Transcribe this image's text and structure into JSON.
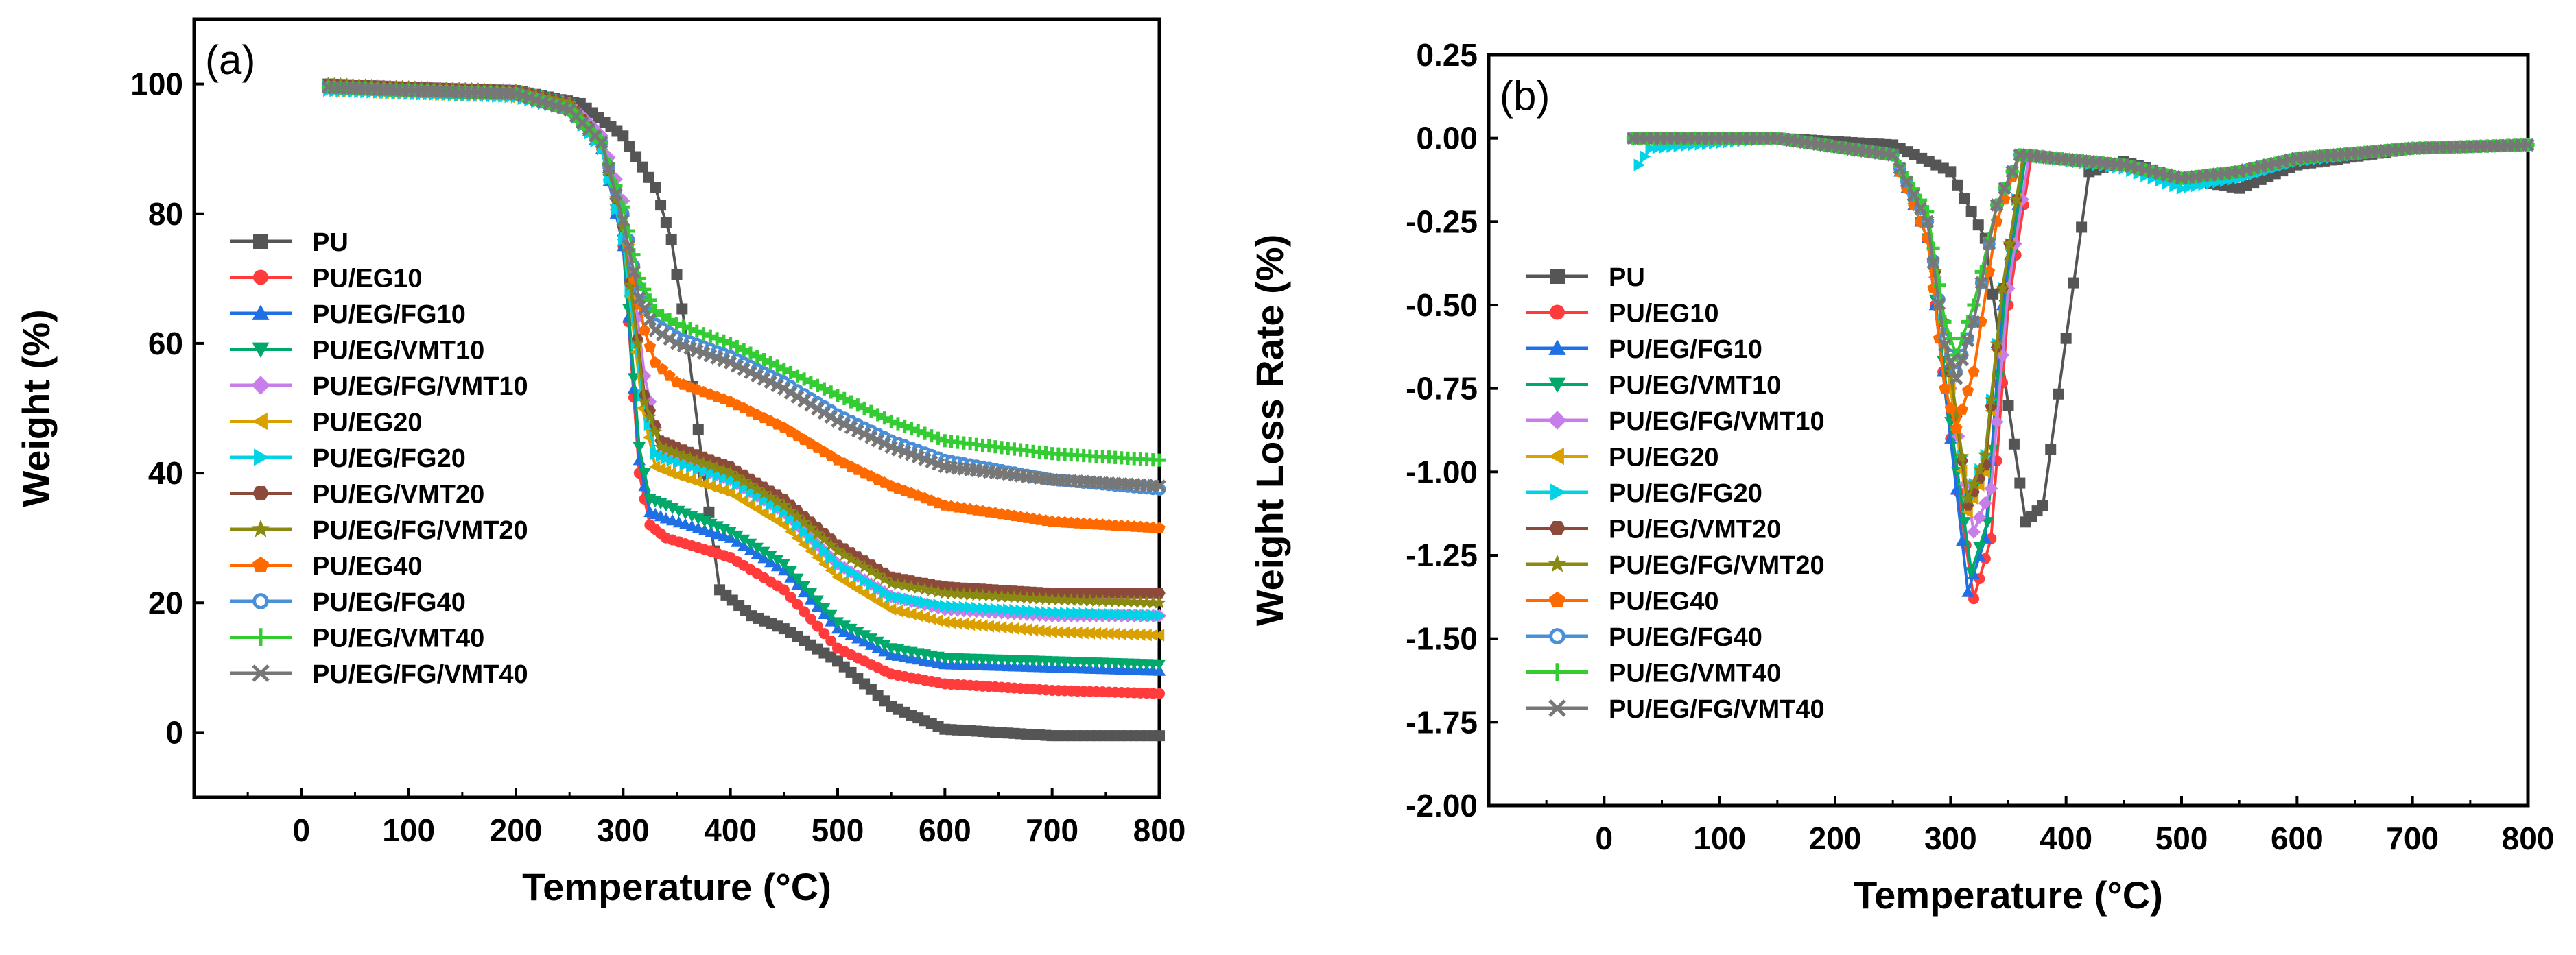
{
  "chart_data": [
    {
      "type": "line",
      "panel_label": "(a)",
      "xlabel": "Temperature (°C)",
      "ylabel": "Weight (%)",
      "xlim": [
        -100,
        800
      ],
      "ylim": [
        -10,
        110
      ],
      "xticks": [
        0,
        100,
        200,
        300,
        400,
        500,
        600,
        700,
        800
      ],
      "yticks": [
        0,
        20,
        40,
        60,
        80,
        100
      ],
      "legend_location": "left-middle",
      "series": [
        {
          "name": "PU",
          "color": "#555555",
          "marker": "square",
          "x": [
            25,
            100,
            200,
            260,
            300,
            330,
            345,
            360,
            375,
            390,
            420,
            450,
            500,
            550,
            600,
            700,
            800
          ],
          "y": [
            100,
            99.5,
            99,
            97,
            92,
            84,
            76,
            60,
            40,
            22,
            18,
            16,
            11,
            4,
            0.5,
            -0.5,
            -0.5
          ]
        },
        {
          "name": "PU/EG10",
          "color": "#ff3b3b",
          "marker": "circle",
          "x": [
            25,
            100,
            200,
            250,
            280,
            300,
            315,
            325,
            340,
            400,
            450,
            500,
            550,
            600,
            700,
            800
          ],
          "y": [
            100,
            99.5,
            99,
            97,
            90,
            75,
            40,
            32,
            30,
            27,
            22,
            13,
            9,
            7.5,
            6.5,
            6
          ]
        },
        {
          "name": "PU/EG/FG10",
          "color": "#1f6fe5",
          "marker": "triangle-up",
          "x": [
            25,
            100,
            200,
            250,
            280,
            300,
            315,
            325,
            340,
            400,
            450,
            500,
            550,
            600,
            700,
            800
          ],
          "y": [
            100,
            99.5,
            99,
            97,
            90,
            75,
            42,
            34,
            33,
            30,
            25,
            16,
            12,
            10.5,
            10,
            9.5
          ]
        },
        {
          "name": "PU/EG/VMT10",
          "color": "#00a86b",
          "marker": "triangle-down",
          "x": [
            25,
            100,
            200,
            250,
            280,
            300,
            315,
            325,
            340,
            400,
            450,
            500,
            550,
            600,
            700,
            800
          ],
          "y": [
            100,
            99.5,
            99,
            97,
            90,
            76,
            44,
            36,
            35,
            31,
            26,
            17,
            13,
            11.5,
            11,
            10.5
          ]
        },
        {
          "name": "PU/EG/FG/VMT10",
          "color": "#c77ee8",
          "marker": "diamond",
          "x": [
            25,
            100,
            200,
            250,
            280,
            300,
            320,
            335,
            350,
            400,
            450,
            500,
            550,
            600,
            700,
            800
          ],
          "y": [
            100,
            99.5,
            99,
            97,
            92,
            82,
            55,
            43,
            42,
            39,
            34,
            26,
            21,
            19,
            18,
            18
          ]
        },
        {
          "name": "PU/EG20",
          "color": "#d9a000",
          "marker": "triangle-left",
          "x": [
            25,
            100,
            200,
            250,
            280,
            300,
            318,
            330,
            345,
            400,
            450,
            500,
            550,
            600,
            700,
            800
          ],
          "y": [
            99,
            98.5,
            98,
            96,
            90,
            76,
            50,
            41,
            40,
            37,
            32,
            24,
            19,
            17,
            15.5,
            15
          ]
        },
        {
          "name": "PU/EG/FG20",
          "color": "#00d3e6",
          "marker": "triangle-right",
          "x": [
            25,
            100,
            200,
            250,
            280,
            300,
            318,
            330,
            345,
            400,
            450,
            500,
            550,
            600,
            700,
            800
          ],
          "y": [
            99,
            98.5,
            98,
            96,
            90,
            76,
            52,
            43,
            42,
            39,
            34,
            26,
            21,
            19.5,
            18.5,
            18
          ]
        },
        {
          "name": "PU/EG/VMT20",
          "color": "#8b4a3a",
          "marker": "hexagon",
          "x": [
            25,
            100,
            200,
            250,
            280,
            300,
            320,
            335,
            350,
            400,
            450,
            500,
            550,
            600,
            700,
            800
          ],
          "y": [
            100,
            99.5,
            99,
            97,
            91,
            78,
            52,
            45,
            44,
            41,
            36,
            29,
            24,
            22.5,
            21.5,
            21.5
          ]
        },
        {
          "name": "PU/EG/FG/VMT20",
          "color": "#8a8a12",
          "marker": "star",
          "x": [
            25,
            100,
            200,
            250,
            280,
            300,
            320,
            335,
            350,
            400,
            450,
            500,
            550,
            600,
            700,
            800
          ],
          "y": [
            100,
            99.5,
            99,
            97,
            91,
            78,
            51,
            44,
            43,
            40,
            35,
            28,
            23,
            21.5,
            20.5,
            20
          ]
        },
        {
          "name": "PU/EG40",
          "color": "#ff6a00",
          "marker": "pentagon",
          "x": [
            25,
            100,
            200,
            250,
            280,
            300,
            310,
            320,
            330,
            350,
            400,
            450,
            500,
            550,
            600,
            700,
            800
          ],
          "y": [
            99.5,
            99,
            98.5,
            96,
            91,
            80,
            70,
            62,
            57,
            54,
            51,
            47,
            42,
            38,
            35,
            32.5,
            31.5
          ]
        },
        {
          "name": "PU/EG/FG40",
          "color": "#4a90d9",
          "marker": "circle-open",
          "x": [
            25,
            100,
            200,
            250,
            280,
            300,
            315,
            330,
            350,
            400,
            450,
            500,
            550,
            600,
            700,
            800
          ],
          "y": [
            99.5,
            99,
            98.5,
            96,
            91,
            80,
            68,
            63,
            61,
            58,
            54,
            49,
            45,
            42,
            39,
            37.5
          ]
        },
        {
          "name": "PU/EG/VMT40",
          "color": "#33cc33",
          "marker": "plus",
          "x": [
            25,
            100,
            200,
            250,
            280,
            300,
            315,
            330,
            350,
            400,
            450,
            500,
            550,
            600,
            700,
            800
          ],
          "y": [
            99.5,
            99,
            98.5,
            96,
            91,
            81,
            70,
            65,
            63,
            60,
            56,
            52,
            48,
            45,
            43,
            42
          ]
        },
        {
          "name": "PU/EG/FG/VMT40",
          "color": "#777777",
          "marker": "x",
          "x": [
            25,
            100,
            200,
            250,
            280,
            300,
            315,
            330,
            350,
            400,
            450,
            500,
            550,
            600,
            700,
            800
          ],
          "y": [
            99.5,
            99,
            98.5,
            96,
            91,
            79,
            67,
            62,
            60,
            57,
            53,
            48,
            44,
            41,
            39,
            38
          ]
        }
      ]
    },
    {
      "type": "line",
      "panel_label": "(b)",
      "xlabel": "Temperature (°C)",
      "ylabel": "Weight Loss Rate (%)",
      "xlim": [
        -100,
        800
      ],
      "ylim": [
        -2.0,
        0.25
      ],
      "xticks": [
        0,
        100,
        200,
        300,
        400,
        500,
        600,
        700,
        800
      ],
      "yticks": [
        0.25,
        0.0,
        -0.25,
        -0.5,
        -0.75,
        -1.0,
        -1.25,
        -1.5,
        -1.75,
        -2.0
      ],
      "ytick_labels": [
        "0.25",
        "0.00",
        "-0.25",
        "-0.50",
        "-0.75",
        "-1.00",
        "-1.25",
        "-1.50",
        "-1.75",
        "-2.00"
      ],
      "legend_location": "left-middle",
      "series": [
        {
          "name": "PU",
          "color": "#555555",
          "marker": "square",
          "x": [
            25,
            150,
            250,
            300,
            330,
            350,
            365,
            380,
            400,
            420,
            450,
            500,
            550,
            600,
            700,
            800
          ],
          "y": [
            0,
            0,
            -0.02,
            -0.1,
            -0.3,
            -0.8,
            -1.15,
            -1.1,
            -0.6,
            -0.1,
            -0.07,
            -0.12,
            -0.15,
            -0.08,
            -0.03,
            -0.02
          ]
        },
        {
          "name": "PU/EG10",
          "color": "#ff3b3b",
          "marker": "circle",
          "x": [
            25,
            150,
            250,
            280,
            300,
            320,
            335,
            350,
            370,
            450,
            500,
            550,
            600,
            700,
            800
          ],
          "y": [
            0,
            0,
            -0.05,
            -0.3,
            -0.9,
            -1.38,
            -1.2,
            -0.5,
            -0.05,
            -0.08,
            -0.12,
            -0.1,
            -0.06,
            -0.03,
            -0.02
          ]
        },
        {
          "name": "PU/EG/FG10",
          "color": "#1f6fe5",
          "marker": "triangle-up",
          "x": [
            25,
            150,
            250,
            280,
            300,
            315,
            330,
            345,
            365,
            450,
            500,
            550,
            600,
            700,
            800
          ],
          "y": [
            0,
            0,
            -0.05,
            -0.3,
            -0.9,
            -1.36,
            -1.2,
            -0.5,
            -0.05,
            -0.08,
            -0.12,
            -0.1,
            -0.06,
            -0.03,
            -0.02
          ]
        },
        {
          "name": "PU/EG/VMT10",
          "color": "#00a86b",
          "marker": "triangle-down",
          "x": [
            25,
            150,
            250,
            280,
            300,
            318,
            332,
            347,
            365,
            450,
            500,
            550,
            600,
            700,
            800
          ],
          "y": [
            0,
            0,
            -0.05,
            -0.3,
            -0.85,
            -1.3,
            -1.15,
            -0.5,
            -0.05,
            -0.08,
            -0.12,
            -0.1,
            -0.06,
            -0.03,
            -0.02
          ]
        },
        {
          "name": "PU/EG/FG/VMT10",
          "color": "#c77ee8",
          "marker": "diamond",
          "x": [
            25,
            150,
            250,
            280,
            300,
            320,
            335,
            350,
            368,
            450,
            500,
            550,
            600,
            700,
            800
          ],
          "y": [
            0,
            0,
            -0.05,
            -0.25,
            -0.75,
            -1.18,
            -1.05,
            -0.45,
            -0.05,
            -0.08,
            -0.12,
            -0.1,
            -0.06,
            -0.03,
            -0.02
          ]
        },
        {
          "name": "PU/EG20",
          "color": "#d9a000",
          "marker": "triangle-left",
          "x": [
            25,
            150,
            250,
            280,
            300,
            315,
            330,
            345,
            363,
            450,
            500,
            550,
            600,
            700,
            800
          ],
          "y": [
            0,
            0,
            -0.05,
            -0.25,
            -0.75,
            -1.12,
            -1.0,
            -0.45,
            -0.05,
            -0.08,
            -0.12,
            -0.1,
            -0.06,
            -0.03,
            -0.02
          ]
        },
        {
          "name": "PU/EG/FG20",
          "color": "#00d3e6",
          "marker": "triangle-right",
          "x": [
            30,
            40,
            150,
            250,
            280,
            300,
            315,
            330,
            345,
            363,
            450,
            500,
            550,
            600,
            700,
            800
          ],
          "y": [
            -0.08,
            -0.03,
            0,
            -0.05,
            -0.25,
            -0.7,
            -1.08,
            -0.95,
            -0.45,
            -0.05,
            -0.09,
            -0.15,
            -0.12,
            -0.07,
            -0.03,
            -0.02
          ]
        },
        {
          "name": "PU/EG/VMT20",
          "color": "#8b4a3a",
          "marker": "hexagon",
          "x": [
            25,
            150,
            250,
            280,
            300,
            315,
            330,
            345,
            363,
            450,
            500,
            550,
            600,
            700,
            800
          ],
          "y": [
            0,
            0,
            -0.05,
            -0.25,
            -0.7,
            -1.1,
            -0.98,
            -0.45,
            -0.05,
            -0.08,
            -0.12,
            -0.1,
            -0.06,
            -0.03,
            -0.02
          ]
        },
        {
          "name": "PU/EG/FG/VMT20",
          "color": "#8a8a12",
          "marker": "star",
          "x": [
            25,
            150,
            250,
            280,
            300,
            315,
            330,
            345,
            363,
            450,
            500,
            550,
            600,
            700,
            800
          ],
          "y": [
            0,
            0,
            -0.05,
            -0.25,
            -0.7,
            -1.08,
            -0.95,
            -0.45,
            -0.05,
            -0.08,
            -0.12,
            -0.1,
            -0.06,
            -0.03,
            -0.02
          ]
        },
        {
          "name": "PU/EG40",
          "color": "#ff6a00",
          "marker": "pentagon",
          "x": [
            25,
            150,
            250,
            280,
            295,
            305,
            320,
            340,
            360,
            450,
            500,
            550,
            600,
            700,
            800
          ],
          "y": [
            0,
            0,
            -0.05,
            -0.3,
            -0.75,
            -0.87,
            -0.7,
            -0.25,
            -0.05,
            -0.08,
            -0.12,
            -0.1,
            -0.06,
            -0.03,
            -0.02
          ]
        },
        {
          "name": "PU/EG/FG40",
          "color": "#4a90d9",
          "marker": "circle-open",
          "x": [
            25,
            150,
            250,
            280,
            295,
            305,
            320,
            340,
            360,
            450,
            500,
            550,
            600,
            700,
            800
          ],
          "y": [
            0,
            0,
            -0.05,
            -0.25,
            -0.6,
            -0.7,
            -0.55,
            -0.2,
            -0.05,
            -0.08,
            -0.12,
            -0.1,
            -0.06,
            -0.03,
            -0.02
          ]
        },
        {
          "name": "PU/EG/VMT40",
          "color": "#33cc33",
          "marker": "plus",
          "x": [
            25,
            150,
            250,
            280,
            295,
            305,
            320,
            340,
            360,
            450,
            500,
            550,
            600,
            700,
            800
          ],
          "y": [
            0,
            0,
            -0.05,
            -0.22,
            -0.55,
            -0.65,
            -0.5,
            -0.2,
            -0.05,
            -0.08,
            -0.12,
            -0.1,
            -0.06,
            -0.03,
            -0.02
          ]
        },
        {
          "name": "PU/EG/FG/VMT40",
          "color": "#777777",
          "marker": "x",
          "x": [
            25,
            150,
            250,
            280,
            295,
            305,
            320,
            340,
            360,
            450,
            500,
            550,
            600,
            700,
            800
          ],
          "y": [
            0,
            0,
            -0.05,
            -0.25,
            -0.62,
            -0.72,
            -0.55,
            -0.2,
            -0.05,
            -0.08,
            -0.12,
            -0.1,
            -0.06,
            -0.03,
            -0.02
          ]
        }
      ]
    }
  ]
}
